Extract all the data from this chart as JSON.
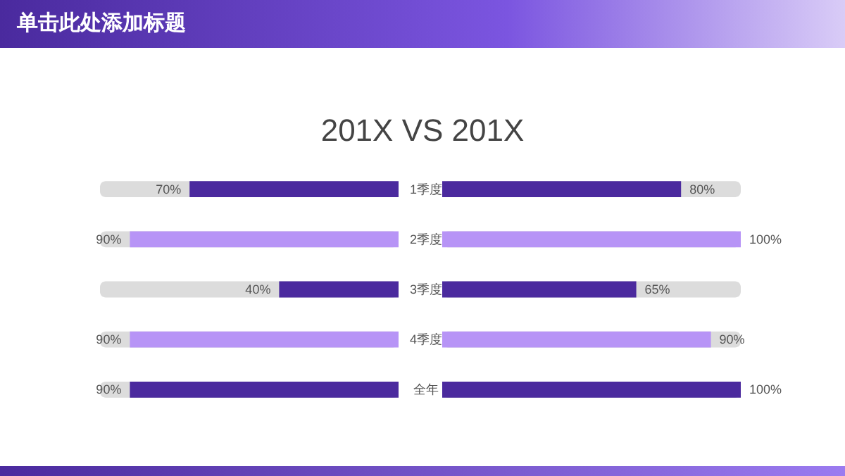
{
  "chart_data": [
    {
      "type": "bar",
      "orientation": "horizontal",
      "title": "单击此处添加标题",
      "subtitle": "201X VS 201X",
      "categories": [
        "1季度",
        "2季度",
        "3季度",
        "4季度",
        "全年"
      ],
      "values": [
        70,
        90,
        40,
        90,
        90
      ],
      "value_labels": [
        "70%",
        "90%",
        "40%",
        "90%",
        "90%"
      ],
      "colors": [
        "#4b2a9e",
        "#b794f6",
        "#4b2a9e",
        "#b794f6",
        "#4b2a9e"
      ],
      "xlim": [
        100,
        0
      ],
      "tick_labels": "y"
    },
    {
      "type": "bar",
      "orientation": "horizontal",
      "values": [
        80,
        100,
        65,
        90,
        100
      ],
      "value_labels": [
        "80%",
        "100%",
        "65%",
        "90%",
        "100%"
      ],
      "colors": [
        "#4b2a9e",
        "#b794f6",
        "#4b2a9e",
        "#b794f6",
        "#4b2a9e"
      ],
      "xlim": [
        0,
        100
      ],
      "tick_labels": false
    }
  ]
}
